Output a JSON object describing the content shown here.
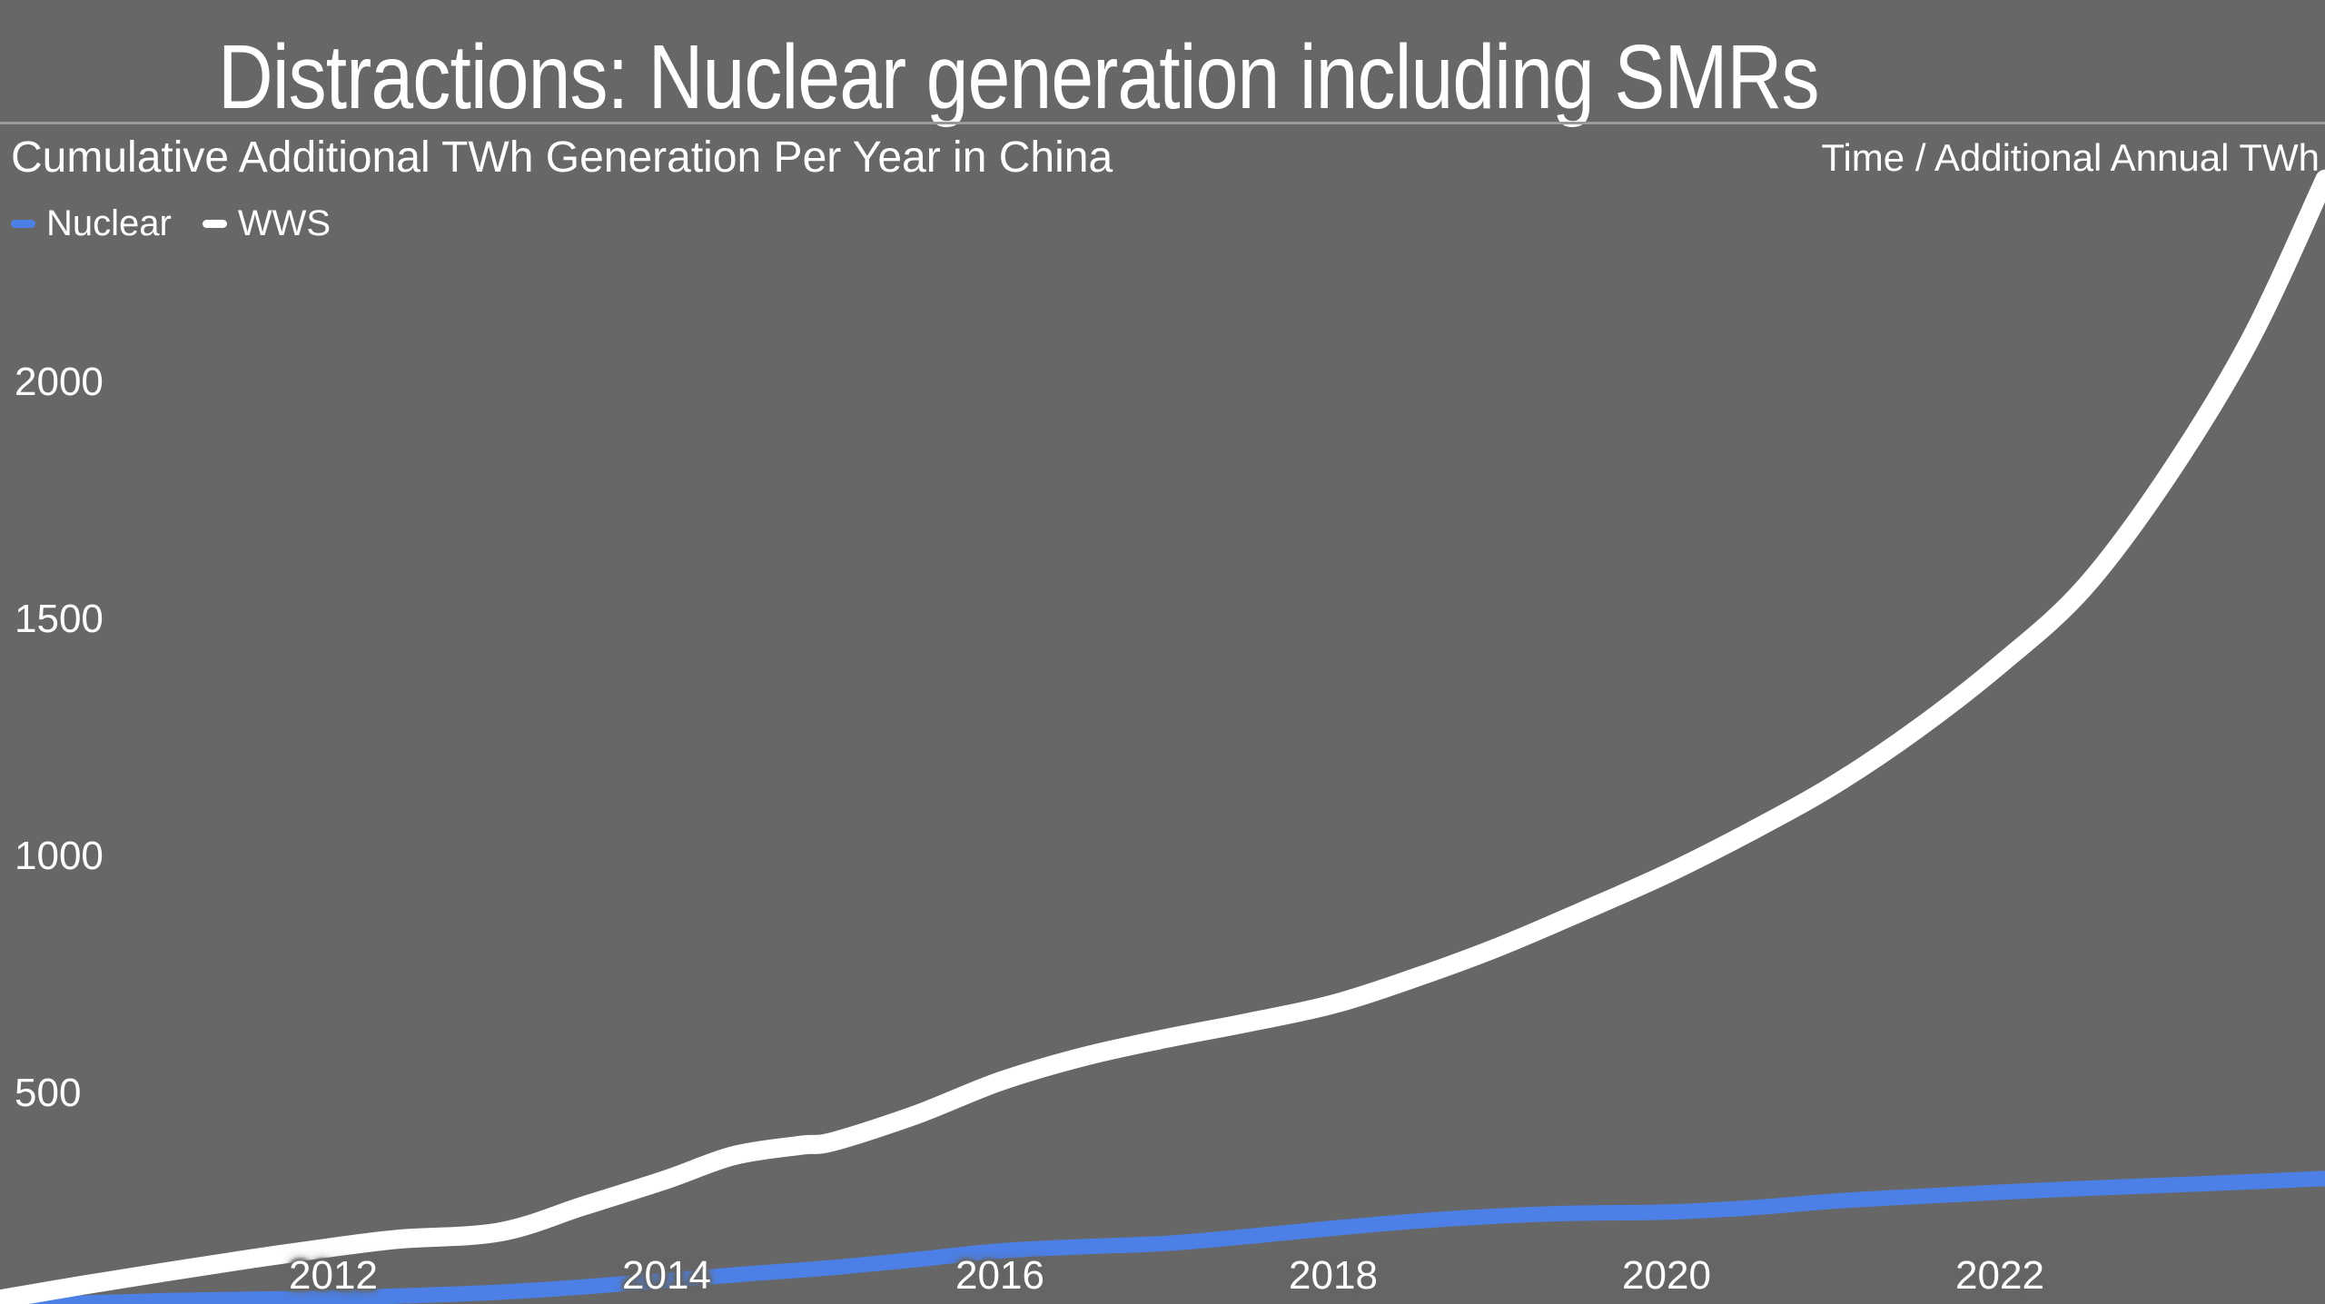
{
  "page": {
    "title": "Distractions: Nuclear generation including SMRs",
    "background_color": "#676767",
    "divider_color": "#9a9a9a",
    "text_color": "#ffffff"
  },
  "header": {
    "chart_title": "Cumulative Additional TWh Generation Per Year in China",
    "context_label": "Time / Additional Annual TWh"
  },
  "legend": {
    "items": [
      {
        "label": "Nuclear",
        "color": "#4d80e6"
      },
      {
        "label": "WWS",
        "color": "#ffffff"
      }
    ]
  },
  "chart_data": {
    "type": "line",
    "title": "Cumulative Additional TWh Generation Per Year in China",
    "xlabel": "Time",
    "ylabel": "Additional Annual TWh",
    "grid": false,
    "legend_position": "top-left",
    "xlim": [
      2010,
      2023.95
    ],
    "ylim": [
      55,
      2808
    ],
    "x_ticks": [
      2012,
      2014,
      2016,
      2018,
      2020,
      2022
    ],
    "y_ticks": [
      500,
      1000,
      1500,
      2000
    ],
    "series": [
      {
        "name": "Nuclear",
        "color": "#4d80e6",
        "stroke_width": 17,
        "points": [
          [
            2010,
            50
          ],
          [
            2010.5,
            57
          ],
          [
            2011,
            62
          ],
          [
            2011.5,
            65
          ],
          [
            2012,
            68
          ],
          [
            2012.5,
            73
          ],
          [
            2013,
            80
          ],
          [
            2013.5,
            91
          ],
          [
            2014,
            105
          ],
          [
            2014.5,
            119
          ],
          [
            2015,
            132
          ],
          [
            2015.5,
            149
          ],
          [
            2016,
            167
          ],
          [
            2016.5,
            176
          ],
          [
            2017,
            183
          ],
          [
            2017.5,
            198
          ],
          [
            2018,
            215
          ],
          [
            2018.5,
            230
          ],
          [
            2019,
            241
          ],
          [
            2019.5,
            247
          ],
          [
            2020,
            249
          ],
          [
            2020.5,
            258
          ],
          [
            2021,
            272
          ],
          [
            2021.5,
            282
          ],
          [
            2022,
            291
          ],
          [
            2022.5,
            299
          ],
          [
            2023,
            306
          ],
          [
            2023.5,
            313
          ],
          [
            2023.95,
            320
          ]
        ]
      },
      {
        "name": "WWS",
        "color": "#ffffff",
        "stroke_width": 21,
        "points": [
          [
            2010,
            65
          ],
          [
            2010.5,
            95
          ],
          [
            2011,
            123
          ],
          [
            2011.5,
            150
          ],
          [
            2012,
            175
          ],
          [
            2012.4,
            192
          ],
          [
            2013,
            207
          ],
          [
            2013.5,
            262
          ],
          [
            2014,
            318
          ],
          [
            2014.4,
            368
          ],
          [
            2014.8,
            390
          ],
          [
            2015,
            398
          ],
          [
            2015.5,
            455
          ],
          [
            2016,
            525
          ],
          [
            2016.5,
            577
          ],
          [
            2017,
            616
          ],
          [
            2017.5,
            650
          ],
          [
            2018,
            688
          ],
          [
            2018.5,
            745
          ],
          [
            2019,
            810
          ],
          [
            2019.5,
            885
          ],
          [
            2020,
            963
          ],
          [
            2020.5,
            1052
          ],
          [
            2021,
            1150
          ],
          [
            2021.5,
            1268
          ],
          [
            2022,
            1405
          ],
          [
            2022.5,
            1565
          ],
          [
            2023,
            1800
          ],
          [
            2023.5,
            2090
          ],
          [
            2023.95,
            2430
          ]
        ]
      }
    ]
  }
}
